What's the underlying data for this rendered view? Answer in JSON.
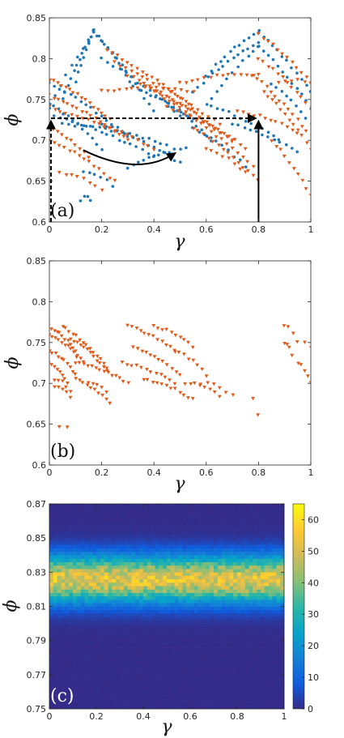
{
  "chart_data": [
    {
      "id": "a",
      "type": "scatter",
      "panel_label": "(a)",
      "xlabel": "γ",
      "ylabel": "ϕ",
      "xlim": [
        0,
        1
      ],
      "ylim": [
        0.6,
        0.85
      ],
      "xticks": [
        "0",
        "0.2",
        "0.4",
        "0.6",
        "0.8",
        "1"
      ],
      "yticks": [
        "0.6",
        "0.65",
        "0.7",
        "0.75",
        "0.8",
        "0.85"
      ],
      "grid": false,
      "colors": {
        "blue": "#1f77b4",
        "orange": "#e05a1a",
        "annot": "#000000"
      },
      "series": [
        {
          "marker": "circle",
          "color": "#1f77b4",
          "segments": [
            {
              "x0": 0.0,
              "x1": 0.17,
              "y0": 0.74,
              "y1": 0.834,
              "n": 9
            },
            {
              "x0": 0.05,
              "x1": 0.17,
              "y0": 0.75,
              "y1": 0.834,
              "n": 12
            },
            {
              "x0": 0.1,
              "x1": 0.17,
              "y0": 0.772,
              "y1": 0.834,
              "n": 8
            },
            {
              "x0": 0.17,
              "x1": 0.32,
              "y0": 0.834,
              "y1": 0.765,
              "n": 12
            },
            {
              "x0": 0.17,
              "x1": 0.4,
              "y0": 0.834,
              "y1": 0.735,
              "n": 14
            },
            {
              "x0": 0.2,
              "x1": 0.5,
              "y0": 0.8,
              "y1": 0.73,
              "n": 14
            },
            {
              "x0": 0.0,
              "x1": 0.3,
              "y0": 0.77,
              "y1": 0.705,
              "n": 16
            },
            {
              "x0": 0.0,
              "x1": 0.2,
              "y0": 0.745,
              "y1": 0.69,
              "n": 12
            },
            {
              "x0": 0.02,
              "x1": 0.4,
              "y0": 0.73,
              "y1": 0.68,
              "n": 18
            },
            {
              "x0": 0.05,
              "x1": 0.45,
              "y0": 0.72,
              "y1": 0.695,
              "n": 18
            },
            {
              "x0": 0.2,
              "x1": 0.5,
              "y0": 0.72,
              "y1": 0.672,
              "n": 16
            },
            {
              "x0": 0.3,
              "x1": 0.52,
              "y0": 0.666,
              "y1": 0.69,
              "n": 12
            },
            {
              "x0": 0.35,
              "x1": 0.55,
              "y0": 0.76,
              "y1": 0.725,
              "n": 12
            },
            {
              "x0": 0.45,
              "x1": 0.62,
              "y0": 0.745,
              "y1": 0.7,
              "n": 10
            },
            {
              "x0": 0.55,
              "x1": 0.8,
              "y0": 0.76,
              "y1": 0.82,
              "n": 14
            },
            {
              "x0": 0.6,
              "x1": 0.8,
              "y0": 0.78,
              "y1": 0.833,
              "n": 12
            },
            {
              "x0": 0.62,
              "x1": 0.8,
              "y0": 0.75,
              "y1": 0.815,
              "n": 10
            },
            {
              "x0": 0.8,
              "x1": 1.0,
              "y0": 0.833,
              "y1": 0.76,
              "n": 12
            },
            {
              "x0": 0.8,
              "x1": 1.0,
              "y0": 0.815,
              "y1": 0.74,
              "n": 12
            },
            {
              "x0": 0.6,
              "x1": 0.88,
              "y0": 0.745,
              "y1": 0.7,
              "n": 14
            },
            {
              "x0": 0.7,
              "x1": 0.95,
              "y0": 0.72,
              "y1": 0.685,
              "n": 12
            },
            {
              "x0": 0.55,
              "x1": 0.75,
              "y0": 0.715,
              "y1": 0.668,
              "n": 10
            },
            {
              "x0": 0.85,
              "x1": 1.0,
              "y0": 0.77,
              "y1": 0.72,
              "n": 9
            },
            {
              "x0": 0.12,
              "x1": 0.16,
              "y0": 0.627,
              "y1": 0.627,
              "n": 4
            },
            {
              "x0": 0.13,
              "x1": 0.24,
              "y0": 0.66,
              "y1": 0.645,
              "n": 6
            }
          ]
        },
        {
          "marker": "triangle",
          "color": "#e05a1a",
          "segments": [
            {
              "x0": 0.0,
              "x1": 0.23,
              "y0": 0.775,
              "y1": 0.725,
              "n": 16
            },
            {
              "x0": 0.0,
              "x1": 0.3,
              "y0": 0.755,
              "y1": 0.7,
              "n": 18
            },
            {
              "x0": 0.0,
              "x1": 0.4,
              "y0": 0.74,
              "y1": 0.69,
              "n": 20
            },
            {
              "x0": 0.0,
              "x1": 0.15,
              "y0": 0.715,
              "y1": 0.68,
              "n": 10
            },
            {
              "x0": 0.0,
              "x1": 0.25,
              "y0": 0.7,
              "y1": 0.65,
              "n": 14
            },
            {
              "x0": 0.04,
              "x1": 0.2,
              "y0": 0.66,
              "y1": 0.64,
              "n": 8
            },
            {
              "x0": 0.22,
              "x1": 0.55,
              "y0": 0.81,
              "y1": 0.74,
              "n": 18
            },
            {
              "x0": 0.25,
              "x1": 0.65,
              "y0": 0.795,
              "y1": 0.72,
              "n": 20
            },
            {
              "x0": 0.3,
              "x1": 0.7,
              "y0": 0.78,
              "y1": 0.7,
              "n": 20
            },
            {
              "x0": 0.35,
              "x1": 0.75,
              "y0": 0.77,
              "y1": 0.69,
              "n": 20
            },
            {
              "x0": 0.4,
              "x1": 0.78,
              "y0": 0.76,
              "y1": 0.668,
              "n": 20
            },
            {
              "x0": 0.2,
              "x1": 0.55,
              "y0": 0.76,
              "y1": 0.76,
              "n": 16
            },
            {
              "x0": 0.45,
              "x1": 0.7,
              "y0": 0.74,
              "y1": 0.7,
              "n": 12
            },
            {
              "x0": 0.55,
              "x1": 0.8,
              "y0": 0.715,
              "y1": 0.65,
              "n": 14
            },
            {
              "x0": 0.6,
              "x1": 0.75,
              "y0": 0.69,
              "y1": 0.66,
              "n": 8
            },
            {
              "x0": 0.5,
              "x1": 0.8,
              "y0": 0.77,
              "y1": 0.78,
              "n": 14
            },
            {
              "x0": 0.8,
              "x1": 1.0,
              "y0": 0.83,
              "y1": 0.77,
              "n": 12
            },
            {
              "x0": 0.8,
              "x1": 1.0,
              "y0": 0.8,
              "y1": 0.74,
              "n": 12
            },
            {
              "x0": 0.78,
              "x1": 1.0,
              "y0": 0.78,
              "y1": 0.705,
              "n": 14
            },
            {
              "x0": 0.82,
              "x1": 1.0,
              "y0": 0.76,
              "y1": 0.69,
              "n": 12
            },
            {
              "x0": 0.85,
              "x1": 1.0,
              "y0": 0.7,
              "y1": 0.632,
              "n": 10
            },
            {
              "x0": 0.72,
              "x1": 0.95,
              "y0": 0.735,
              "y1": 0.71,
              "n": 12
            },
            {
              "x0": 0.88,
              "x1": 1.0,
              "y0": 0.77,
              "y1": 0.77,
              "n": 6
            }
          ]
        }
      ],
      "annotations": [
        {
          "kind": "dashed-arrow-up",
          "x": 0.0,
          "y_from": 0.6,
          "y_to": 0.727
        },
        {
          "kind": "dashed-arrow-right",
          "y": 0.727,
          "x_from": 0.0,
          "x_to": 0.8
        },
        {
          "kind": "solid-arrow-up",
          "x": 0.8,
          "y_from": 0.6,
          "y_to": 0.727
        },
        {
          "kind": "curved-arrow",
          "points": [
            [
              0.13,
              0.688
            ],
            [
              0.34,
              0.655
            ],
            [
              0.48,
              0.684
            ]
          ]
        }
      ]
    },
    {
      "id": "b",
      "type": "scatter",
      "panel_label": "(b)",
      "xlabel": "γ",
      "ylabel": "ϕ",
      "xlim": [
        0,
        1
      ],
      "ylim": [
        0.6,
        0.85
      ],
      "xticks": [
        "0",
        "0.2",
        "0.4",
        "0.6",
        "0.8",
        "1"
      ],
      "yticks": [
        "0.6",
        "0.65",
        "0.7",
        "0.75",
        "0.8",
        "0.85"
      ],
      "grid": false,
      "series": [
        {
          "marker": "triangle",
          "color": "#e05a1a",
          "segments": [
            {
              "x0": 0.0,
              "x1": 0.11,
              "y0": 0.77,
              "y1": 0.735,
              "n": 12
            },
            {
              "x0": 0.0,
              "x1": 0.13,
              "y0": 0.76,
              "y1": 0.725,
              "n": 12
            },
            {
              "x0": 0.0,
              "x1": 0.1,
              "y0": 0.74,
              "y1": 0.71,
              "n": 10
            },
            {
              "x0": 0.0,
              "x1": 0.07,
              "y0": 0.725,
              "y1": 0.7,
              "n": 8
            },
            {
              "x0": 0.02,
              "x1": 0.08,
              "y0": 0.705,
              "y1": 0.69,
              "n": 5
            },
            {
              "x0": 0.05,
              "x1": 0.22,
              "y0": 0.77,
              "y1": 0.72,
              "n": 14
            },
            {
              "x0": 0.08,
              "x1": 0.22,
              "y0": 0.755,
              "y1": 0.715,
              "n": 12
            },
            {
              "x0": 0.1,
              "x1": 0.3,
              "y0": 0.725,
              "y1": 0.7,
              "n": 14
            },
            {
              "x0": 0.15,
              "x1": 0.22,
              "y0": 0.7,
              "y1": 0.69,
              "n": 5
            },
            {
              "x0": 0.1,
              "x1": 0.23,
              "y0": 0.705,
              "y1": 0.675,
              "n": 10
            },
            {
              "x0": 0.02,
              "x1": 0.08,
              "y0": 0.696,
              "y1": 0.683,
              "n": 5
            },
            {
              "x0": 0.3,
              "x1": 0.48,
              "y0": 0.77,
              "y1": 0.74,
              "n": 12
            },
            {
              "x0": 0.32,
              "x1": 0.5,
              "y0": 0.745,
              "y1": 0.71,
              "n": 12
            },
            {
              "x0": 0.28,
              "x1": 0.48,
              "y0": 0.725,
              "y1": 0.7,
              "n": 12
            },
            {
              "x0": 0.4,
              "x1": 0.55,
              "y0": 0.77,
              "y1": 0.745,
              "n": 10
            },
            {
              "x0": 0.36,
              "x1": 0.55,
              "y0": 0.705,
              "y1": 0.68,
              "n": 12
            },
            {
              "x0": 0.48,
              "x1": 0.6,
              "y0": 0.74,
              "y1": 0.71,
              "n": 8
            },
            {
              "x0": 0.52,
              "x1": 0.65,
              "y0": 0.7,
              "y1": 0.685,
              "n": 8
            },
            {
              "x0": 0.58,
              "x1": 0.7,
              "y0": 0.7,
              "y1": 0.685,
              "n": 6
            },
            {
              "x0": 0.9,
              "x1": 0.93,
              "y0": 0.77,
              "y1": 0.76,
              "n": 3
            },
            {
              "x0": 0.9,
              "x1": 0.93,
              "y0": 0.75,
              "y1": 0.735,
              "n": 4
            },
            {
              "x0": 0.95,
              "x1": 1.0,
              "y0": 0.75,
              "y1": 0.745,
              "n": 3
            },
            {
              "x0": 0.95,
              "x1": 1.0,
              "y0": 0.725,
              "y1": 0.7,
              "n": 5
            },
            {
              "x0": 0.04,
              "x1": 0.07,
              "y0": 0.648,
              "y1": 0.645,
              "n": 2
            },
            {
              "x0": 0.78,
              "x1": 0.78,
              "y0": 0.683,
              "y1": 0.683,
              "n": 1
            },
            {
              "x0": 0.8,
              "x1": 0.8,
              "y0": 0.661,
              "y1": 0.661,
              "n": 1
            }
          ]
        }
      ]
    },
    {
      "id": "c",
      "type": "heatmap",
      "panel_label": "(c)",
      "xlabel": "γ",
      "ylabel": "ϕ",
      "xlim": [
        0,
        1
      ],
      "ylim": [
        0.75,
        0.87
      ],
      "xticks": [
        "0",
        "0.2",
        "0.4",
        "0.6",
        "0.8",
        "1"
      ],
      "yticks": [
        "0.75",
        "0.77",
        "0.79",
        "0.81",
        "0.83",
        "0.85",
        "0.87"
      ],
      "colorbar": {
        "min": 0,
        "max": 65,
        "ticks": [
          "0",
          "10",
          "20",
          "30",
          "40",
          "50",
          "60"
        ]
      },
      "colormap": "parula",
      "density": {
        "center": 0.826,
        "sigma": 0.0095,
        "peak": 52,
        "background": 0.5
      },
      "grid": false
    }
  ]
}
